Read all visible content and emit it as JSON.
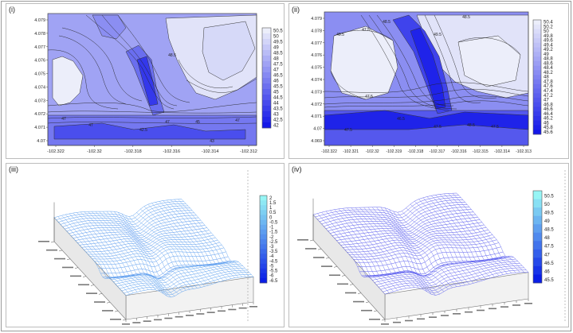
{
  "panels": {
    "p1": {
      "label": "(i)",
      "y_ticks": [
        "4.079",
        "4.078",
        "4.077",
        "4.076",
        "4.075",
        "4.074",
        "4.073",
        "4.072",
        "4.071",
        "4.07"
      ],
      "x_ticks": [
        "-102.322",
        "-102.32",
        "-102.318",
        "-102.316",
        "-102.314",
        "-102.312"
      ],
      "colorbar": [
        "50.5",
        "50",
        "49.5",
        "49",
        "48.5",
        "48",
        "47.5",
        "47",
        "46.5",
        "46",
        "45.5",
        "45",
        "44.5",
        "44",
        "43.5",
        "43",
        "42.5",
        "42"
      ],
      "contour_labels": [
        "48.5",
        "47",
        "47",
        "42.5",
        "47",
        "45",
        "47",
        "43"
      ]
    },
    "p2": {
      "label": "(ii)",
      "y_ticks": [
        "4.079",
        "4.078",
        "4.077",
        "4.076",
        "4.075",
        "4.074",
        "4.073",
        "4.072",
        "4.071",
        "4.07",
        "4.069"
      ],
      "x_ticks": [
        "-102.322",
        "-102.321",
        "-102.32",
        "-102.319",
        "-102.318",
        "-102.317",
        "-102.316",
        "-102.315",
        "-102.314",
        "-102.313"
      ],
      "colorbar": [
        "50.4",
        "50.2",
        "50",
        "49.8",
        "49.6",
        "49.4",
        "49.2",
        "49",
        "48.8",
        "48.6",
        "48.4",
        "48.2",
        "48",
        "47.8",
        "47.6",
        "47.4",
        "47.2",
        "47",
        "46.8",
        "46.6",
        "46.4",
        "46.2",
        "46",
        "45.8",
        "45.6"
      ],
      "contour_labels": [
        "49.5",
        "47.5",
        "48.5",
        "49.5",
        "48.5",
        "47.5",
        "46.5",
        "47.5",
        "48.5",
        "47.5",
        "47.5"
      ]
    },
    "p3": {
      "label": "(iii)",
      "colorbar": [
        "2",
        "1.5",
        "1",
        "0.5",
        "0",
        "-0.5",
        "-1",
        "-1.5",
        "-2",
        "-2.5",
        "-3",
        "-3.5",
        "-4",
        "-4.5",
        "-5",
        "-5.5",
        "-6",
        "-6.5"
      ]
    },
    "p4": {
      "label": "(iv)",
      "colorbar": [
        "50.5",
        "50",
        "49.5",
        "49",
        "48.5",
        "48",
        "47.5",
        "47",
        "46.5",
        "46",
        "45.5"
      ]
    }
  },
  "chart_data": [
    {
      "type": "heatmap",
      "panel": "(i)",
      "xlim": [
        -102.323,
        -102.311
      ],
      "ylim": [
        4.0695,
        4.0795
      ],
      "colorbar_range": [
        42,
        50.5
      ]
    },
    {
      "type": "heatmap",
      "panel": "(ii)",
      "xlim": [
        -102.3225,
        -102.3125
      ],
      "ylim": [
        4.069,
        4.0795
      ],
      "colorbar_range": [
        45.6,
        50.4
      ]
    },
    {
      "type": "area",
      "panel": "(iii)",
      "colorbar_range": [
        -6.5,
        2
      ]
    },
    {
      "type": "area",
      "panel": "(iv)",
      "colorbar_range": [
        45.5,
        50.5
      ]
    }
  ]
}
